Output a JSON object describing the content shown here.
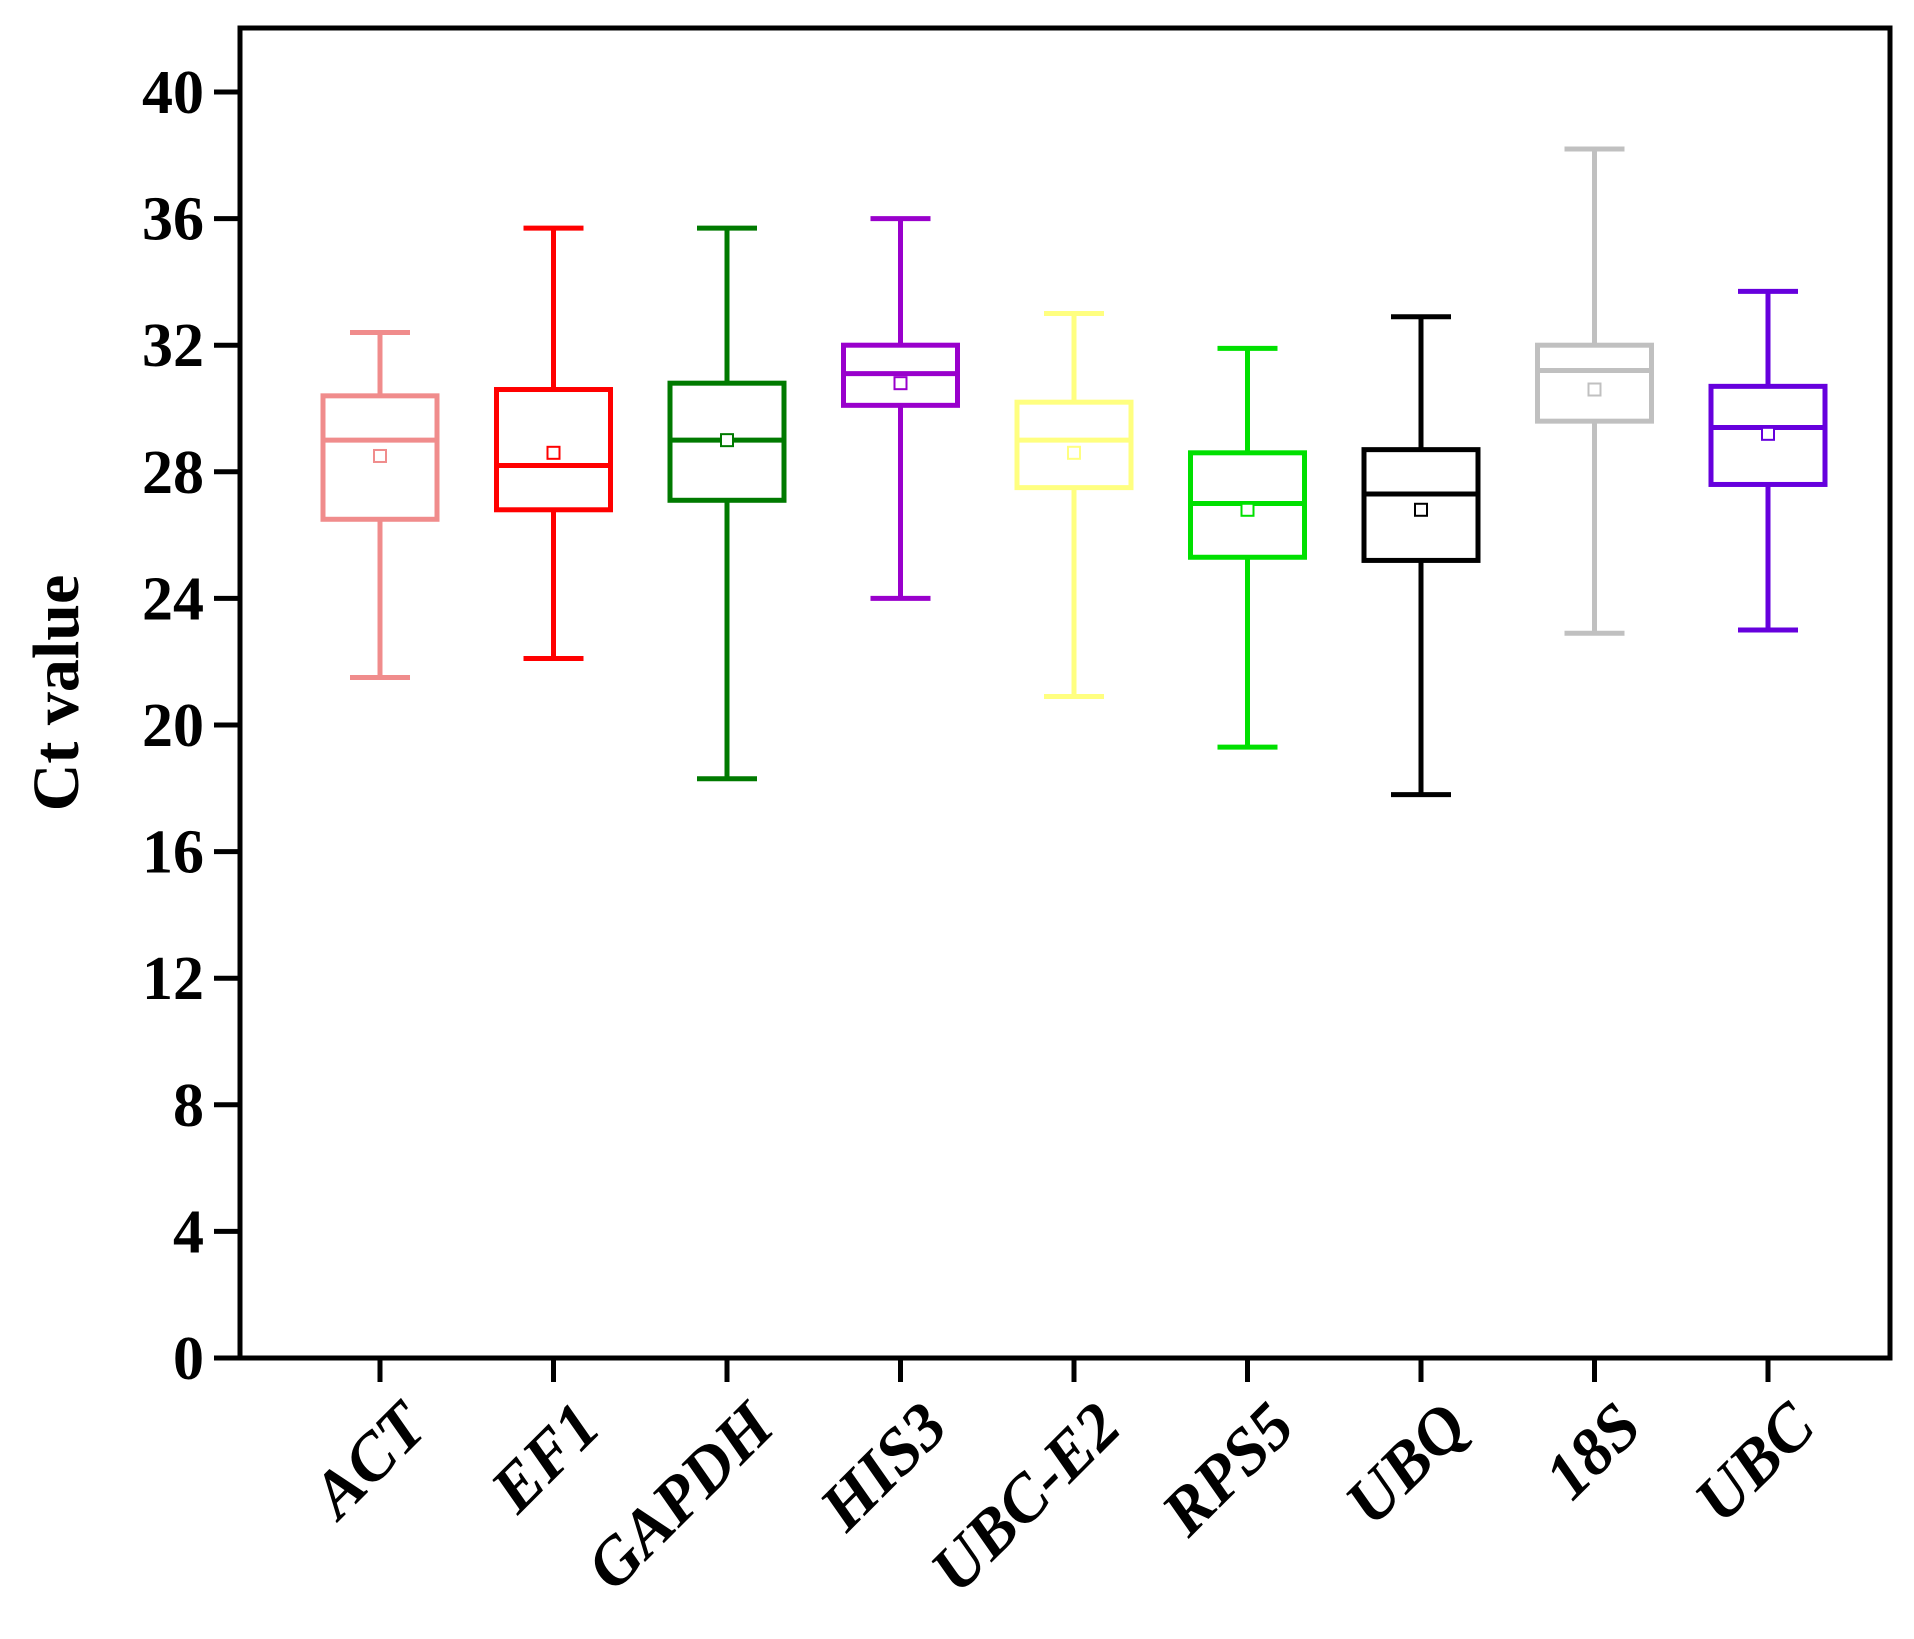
{
  "chart_data": {
    "type": "box",
    "title": "",
    "xlabel": "",
    "ylabel": "Ct value",
    "ylim": [
      0,
      42
    ],
    "yticks": [
      0,
      4,
      8,
      12,
      16,
      20,
      24,
      28,
      32,
      36,
      40
    ],
    "grid": false,
    "categories": [
      "ACT",
      "EF1",
      "GAPDH",
      "HIS3",
      "UBC-E2",
      "RPS5",
      "UBQ",
      "18S",
      "UBC"
    ],
    "boxes": [
      {
        "name": "ACT",
        "color": "#f08c8c",
        "min": 21.5,
        "q1": 26.5,
        "median": 29.0,
        "q3": 30.4,
        "max": 32.4,
        "mean": 28.5
      },
      {
        "name": "EF1",
        "color": "#ff0000",
        "min": 22.1,
        "q1": 26.8,
        "median": 28.2,
        "q3": 30.6,
        "max": 35.7,
        "mean": 28.6
      },
      {
        "name": "GAPDH",
        "color": "#007a00",
        "min": 18.3,
        "q1": 27.1,
        "median": 29.0,
        "q3": 30.8,
        "max": 35.7,
        "mean": 29.0
      },
      {
        "name": "HIS3",
        "color": "#9900cc",
        "min": 24.0,
        "q1": 30.1,
        "median": 31.1,
        "q3": 32.0,
        "max": 36.0,
        "mean": 30.8
      },
      {
        "name": "UBC-E2",
        "color": "#ffff80",
        "min": 20.9,
        "q1": 27.5,
        "median": 29.0,
        "q3": 30.2,
        "max": 33.0,
        "mean": 28.6
      },
      {
        "name": "RPS5",
        "color": "#00e000",
        "min": 19.3,
        "q1": 25.3,
        "median": 27.0,
        "q3": 28.6,
        "max": 31.9,
        "mean": 26.8
      },
      {
        "name": "UBQ",
        "color": "#000000",
        "min": 17.8,
        "q1": 25.2,
        "median": 27.3,
        "q3": 28.7,
        "max": 32.9,
        "mean": 26.8
      },
      {
        "name": "18S",
        "color": "#c0c0c0",
        "min": 22.9,
        "q1": 29.6,
        "median": 31.2,
        "q3": 32.0,
        "max": 38.2,
        "mean": 30.6
      },
      {
        "name": "UBC",
        "color": "#6600dd",
        "min": 23.0,
        "q1": 27.6,
        "median": 29.4,
        "q3": 30.7,
        "max": 33.7,
        "mean": 29.2
      }
    ]
  }
}
